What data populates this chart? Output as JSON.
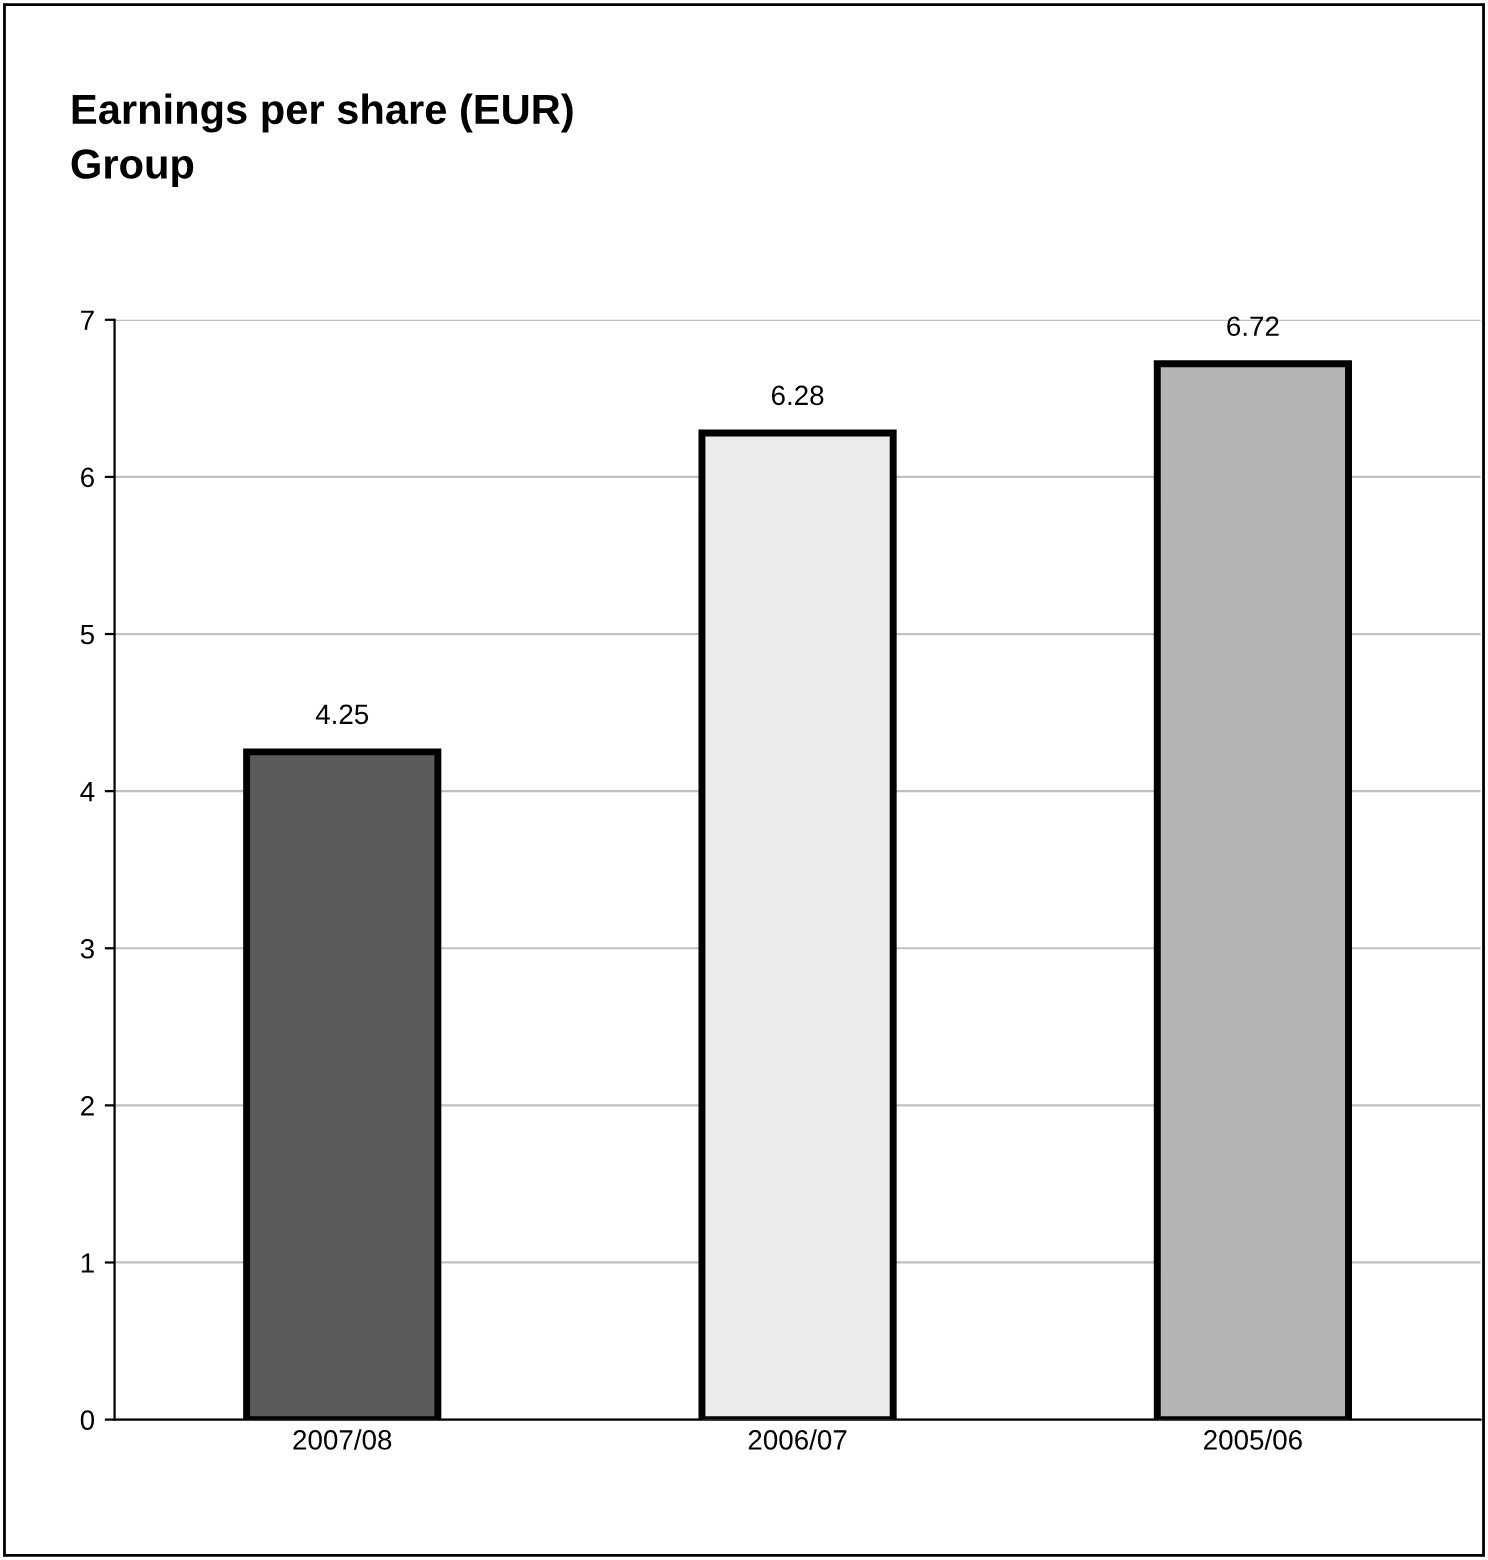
{
  "chart_data": {
    "type": "bar",
    "title": "Earnings per share (EUR)",
    "subtitle": "Group",
    "categories": [
      "2007/08",
      "2006/07",
      "2005/06"
    ],
    "values": [
      4.25,
      6.28,
      6.72
    ],
    "colors": [
      "#5a5a5a",
      "#ececec",
      "#b4b4b4"
    ],
    "ylim": [
      0,
      7
    ],
    "yticks": [
      0,
      1,
      2,
      3,
      4,
      5,
      6,
      7
    ],
    "grid": "y",
    "data_labels": true
  }
}
